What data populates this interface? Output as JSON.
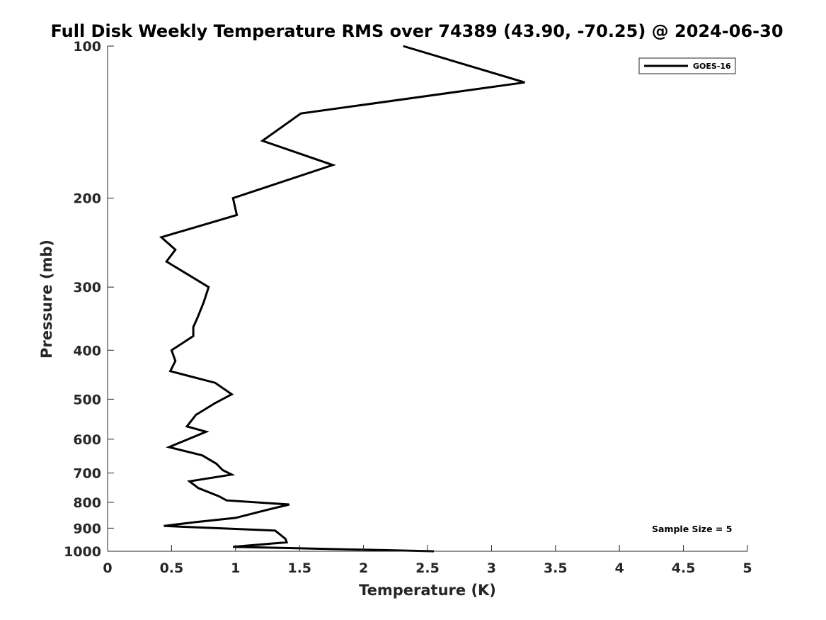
{
  "chart_data": {
    "type": "line",
    "title": "Full Disk Weekly Temperature RMS over 74389 (43.90, -70.25) @ 2024-06-30",
    "xlabel": "Temperature (K)",
    "ylabel": "Pressure (mb)",
    "xlim": [
      0,
      5
    ],
    "ylim": [
      1000,
      100
    ],
    "yscale": "log",
    "x_ticks": [
      0,
      0.5,
      1,
      1.5,
      2,
      2.5,
      3,
      3.5,
      4,
      4.5,
      5
    ],
    "x_tick_labels": [
      "0",
      "0.5",
      "1",
      "1.5",
      "2",
      "2.5",
      "3",
      "3.5",
      "4",
      "4.5",
      "5"
    ],
    "y_ticks": [
      100,
      200,
      300,
      400,
      500,
      600,
      700,
      800,
      900,
      1000
    ],
    "y_tick_labels": [
      "100",
      "200",
      "300",
      "400",
      "500",
      "600",
      "700",
      "800",
      "900",
      "1000"
    ],
    "grid": false,
    "legend_position": "top-right",
    "series": [
      {
        "name": "GOES-16",
        "color": "#000000",
        "points": [
          [
            2.31,
            100
          ],
          [
            3.26,
            118
          ],
          [
            1.51,
            136
          ],
          [
            1.21,
            154
          ],
          [
            1.76,
            172
          ],
          [
            0.98,
            200
          ],
          [
            1.01,
            216
          ],
          [
            0.42,
            239
          ],
          [
            0.53,
            253
          ],
          [
            0.46,
            267
          ],
          [
            0.79,
            300
          ],
          [
            0.75,
            322
          ],
          [
            0.7,
            346
          ],
          [
            0.67,
            360
          ],
          [
            0.67,
            375
          ],
          [
            0.5,
            400
          ],
          [
            0.53,
            420
          ],
          [
            0.49,
            440
          ],
          [
            0.84,
            464
          ],
          [
            0.97,
            489
          ],
          [
            0.84,
            509
          ],
          [
            0.69,
            537
          ],
          [
            0.62,
            566
          ],
          [
            0.77,
            580
          ],
          [
            0.48,
            622
          ],
          [
            0.74,
            646
          ],
          [
            0.85,
            671
          ],
          [
            0.9,
            691
          ],
          [
            0.97,
            705
          ],
          [
            0.64,
            727
          ],
          [
            0.71,
            750
          ],
          [
            0.87,
            778
          ],
          [
            0.93,
            793
          ],
          [
            1.42,
            808
          ],
          [
            1.23,
            830
          ],
          [
            1.0,
            859
          ],
          [
            0.68,
            876
          ],
          [
            0.44,
            891
          ],
          [
            1.31,
            910
          ],
          [
            1.39,
            945
          ],
          [
            1.4,
            960
          ],
          [
            0.98,
            980
          ],
          [
            2.55,
            1000
          ]
        ]
      }
    ],
    "annotation": "Sample Size = 5"
  }
}
